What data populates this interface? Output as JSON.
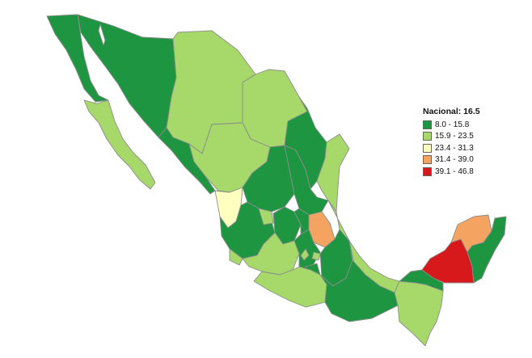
{
  "legend": {
    "title": "Nacional: 16.5",
    "items": [
      {
        "label": "8.0 - 15.8",
        "color": "#1e9641"
      },
      {
        "label": "15.9 - 23.5",
        "color": "#a6d96a"
      },
      {
        "label": "23.4 - 31.3",
        "color": "#ffffc0"
      },
      {
        "label": "31.4 - 39.0",
        "color": "#f4a460"
      },
      {
        "label": "39.1 - 46.8",
        "color": "#d7191c"
      }
    ]
  },
  "regions": [
    {
      "name": "Baja California",
      "class": 0
    },
    {
      "name": "Baja California Sur",
      "class": 1
    },
    {
      "name": "Sonora",
      "class": 0
    },
    {
      "name": "Chihuahua",
      "class": 1
    },
    {
      "name": "Coahuila",
      "class": 1
    },
    {
      "name": "Nuevo León",
      "class": 0
    },
    {
      "name": "Tamaulipas",
      "class": 1
    },
    {
      "name": "Sinaloa",
      "class": 0
    },
    {
      "name": "Durango",
      "class": 1
    },
    {
      "name": "Zacatecas",
      "class": 0
    },
    {
      "name": "San Luis Potosí",
      "class": 0
    },
    {
      "name": "Nayarit",
      "class": 2
    },
    {
      "name": "Jalisco",
      "class": 0
    },
    {
      "name": "Aguascalientes",
      "class": 1
    },
    {
      "name": "Guanajuato",
      "class": 0
    },
    {
      "name": "Querétaro",
      "class": 0
    },
    {
      "name": "Hidalgo",
      "class": 3
    },
    {
      "name": "Colima",
      "class": 1
    },
    {
      "name": "Michoacán",
      "class": 1
    },
    {
      "name": "Estado de México",
      "class": 0
    },
    {
      "name": "Ciudad de México",
      "class": 1
    },
    {
      "name": "Morelos",
      "class": 0
    },
    {
      "name": "Tlaxcala",
      "class": 0
    },
    {
      "name": "Puebla",
      "class": 0
    },
    {
      "name": "Veracruz",
      "class": 1
    },
    {
      "name": "Guerrero",
      "class": 1
    },
    {
      "name": "Oaxaca",
      "class": 0
    },
    {
      "name": "Chiapas",
      "class": 1
    },
    {
      "name": "Tabasco",
      "class": 0
    },
    {
      "name": "Campeche",
      "class": 4
    },
    {
      "name": "Yucatán",
      "class": 3
    },
    {
      "name": "Quintana Roo",
      "class": 0
    }
  ]
}
